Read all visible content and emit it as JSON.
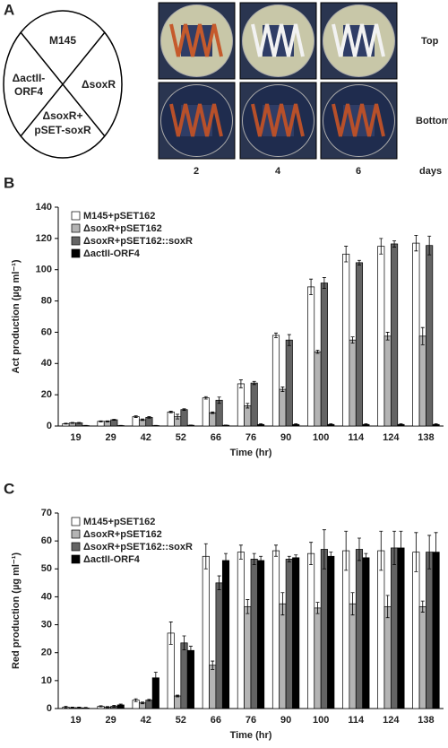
{
  "panel_a": {
    "panel_label": "A",
    "sectors": [
      "M145",
      "ΔactII-",
      "ORF4",
      "ΔsoxR",
      "ΔsoxR+",
      "pSET-soxR"
    ],
    "rows": [
      "Top",
      "Bottom"
    ],
    "days": [
      "2",
      "4",
      "6"
    ],
    "days_label": "days"
  },
  "chart_data": [
    {
      "panel_label": "B",
      "type": "bar",
      "y_label": "Act production (µg ml⁻¹)",
      "x_label": "Time (hr)",
      "categories": [
        "19",
        "29",
        "42",
        "52",
        "66",
        "76",
        "90",
        "100",
        "114",
        "124",
        "138"
      ],
      "ylim": [
        0,
        140
      ],
      "yticks": [
        0,
        20,
        40,
        60,
        80,
        100,
        120,
        140
      ],
      "series": [
        {
          "name": "M145+pSET162",
          "color": "#ffffff",
          "values": [
            1.5,
            3,
            6,
            9,
            18,
            27,
            58,
            89,
            110,
            115,
            117
          ],
          "errors": [
            0.3,
            0.3,
            0.5,
            0.5,
            0.8,
            2.5,
            1.5,
            5,
            5,
            5,
            5
          ]
        },
        {
          "name": "ΔsoxR+pSET162",
          "color": "#b4b4b4",
          "values": [
            2,
            3,
            4,
            6,
            8.5,
            13,
            23.5,
            47.5,
            55,
            57.5,
            57.5
          ],
          "errors": [
            0.3,
            0.3,
            0.5,
            1.5,
            0.5,
            1.5,
            1.5,
            1,
            2,
            2.5,
            5.5
          ]
        },
        {
          "name": "ΔsoxR+pSET162::soxR",
          "color": "#646464",
          "values": [
            2,
            4,
            5.5,
            10.5,
            16.5,
            27.5,
            55,
            91.5,
            104.5,
            116.5,
            115.5
          ],
          "errors": [
            0.3,
            0.3,
            0.5,
            0.5,
            2,
            1,
            3.5,
            3.5,
            1.5,
            2,
            6
          ]
        },
        {
          "name": "ΔactII-ORF4",
          "color": "#000000",
          "values": [
            0.3,
            0.3,
            0.3,
            0.5,
            0.5,
            1,
            1,
            1,
            1,
            1,
            1
          ],
          "errors": [
            0.1,
            0.1,
            0.1,
            0.1,
            0.1,
            0.5,
            0.5,
            0.5,
            0.5,
            0.5,
            0.5
          ]
        }
      ]
    },
    {
      "panel_label": "C",
      "type": "bar",
      "y_label": "Red production (µg ml⁻¹)",
      "x_label": "Time (hr)",
      "categories": [
        "19",
        "29",
        "42",
        "52",
        "66",
        "76",
        "90",
        "100",
        "114",
        "124",
        "138"
      ],
      "ylim": [
        0,
        70
      ],
      "yticks": [
        0,
        10,
        20,
        30,
        40,
        50,
        60,
        70
      ],
      "series": [
        {
          "name": "M145+pSET162",
          "color": "#ffffff",
          "values": [
            0.5,
            0.8,
            3,
            27,
            54.5,
            56,
            56.5,
            55.5,
            56.5,
            56.5,
            56
          ],
          "errors": [
            0.3,
            0.2,
            0.5,
            4,
            4.5,
            2.5,
            2,
            4,
            7,
            7,
            7
          ]
        },
        {
          "name": "ΔsoxR+pSET162",
          "color": "#b4b4b4",
          "values": [
            0.3,
            0.5,
            2,
            4.5,
            15.5,
            36.5,
            37.5,
            36,
            37.5,
            36.5,
            36.5
          ],
          "errors": [
            0.2,
            0.2,
            0.3,
            0.3,
            1.5,
            2.5,
            4,
            2,
            4,
            4,
            2
          ]
        },
        {
          "name": "ΔsoxR+pSET162::soxR",
          "color": "#646464",
          "values": [
            0.3,
            0.8,
            3,
            23.5,
            45,
            53.5,
            53.5,
            57,
            57,
            57.5,
            56
          ],
          "errors": [
            0.2,
            0.3,
            0.3,
            2.5,
            2.5,
            2,
            1,
            7,
            4,
            6,
            6
          ]
        },
        {
          "name": "ΔactII-ORF4",
          "color": "#000000",
          "values": [
            0.2,
            1.3,
            11,
            20.8,
            53,
            53,
            54,
            54.5,
            54,
            57.5,
            56
          ],
          "errors": [
            0.2,
            0.3,
            2,
            1.5,
            2.5,
            1.5,
            1,
            1.5,
            1.5,
            6,
            7
          ]
        }
      ]
    }
  ]
}
